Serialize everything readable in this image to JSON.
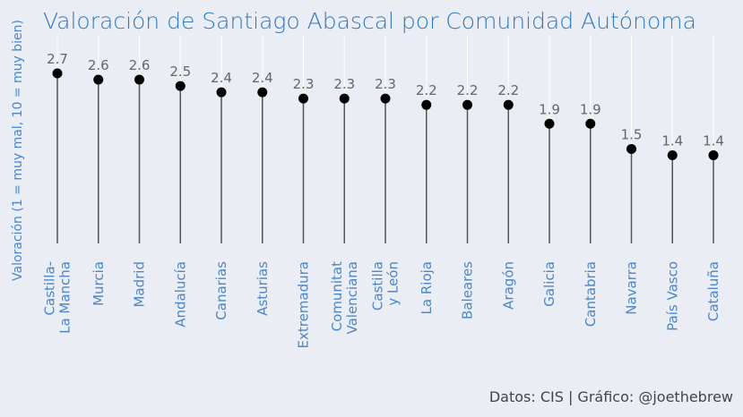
{
  "chart_data": {
    "type": "lollipop",
    "title": "Valoración de Santiago Abascal por Comunidad Autónoma",
    "ylabel": "Valoración (1 = muy mal, 10 = muy bien)",
    "caption": "Datos: CIS | Gráfico: @joethebrew",
    "ylim": [
      0,
      2.7
    ],
    "categories": [
      [
        "Castilla-",
        "La Mancha"
      ],
      [
        "Murcia"
      ],
      [
        "Madrid"
      ],
      [
        "Andalucía"
      ],
      [
        "Canarias"
      ],
      [
        "Asturias"
      ],
      [
        "Extremadura"
      ],
      [
        "Comunitat",
        "Valenciana"
      ],
      [
        "Castilla",
        "y León"
      ],
      [
        "La Rioja"
      ],
      [
        "Baleares"
      ],
      [
        "Aragón"
      ],
      [
        "Galicia"
      ],
      [
        "Cantabria"
      ],
      [
        "Navarra"
      ],
      [
        "País Vasco"
      ],
      [
        "Cataluña"
      ]
    ],
    "values": [
      2.7,
      2.6,
      2.6,
      2.5,
      2.4,
      2.4,
      2.3,
      2.3,
      2.3,
      2.2,
      2.2,
      2.2,
      1.9,
      1.9,
      1.5,
      1.4,
      1.4
    ],
    "labels": [
      "2.7",
      "2.6",
      "2.6",
      "2.5",
      "2.4",
      "2.4",
      "2.3",
      "2.3",
      "2.3",
      "2.2",
      "2.2",
      "2.2",
      "1.9",
      "1.9",
      "1.5",
      "1.4",
      "1.4"
    ],
    "colors": {
      "background": "#eaedf3",
      "accent": "#2f79c2",
      "point": "#000000",
      "stem": "#555555"
    }
  }
}
